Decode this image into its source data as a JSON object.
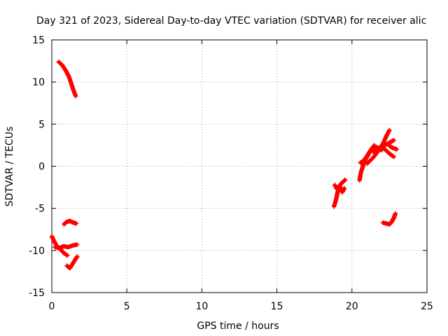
{
  "chart_data": {
    "type": "scatter",
    "title": "Day 321 of 2023, Sidereal Day-to-day VTEC variation (SDTVAR) for receiver alic",
    "xlabel": "GPS time / hours",
    "ylabel": "SDTVAR / TECUs",
    "xlim": [
      0,
      25
    ],
    "ylim": [
      -15,
      15
    ],
    "xticks": [
      0,
      5,
      10,
      15,
      20,
      25
    ],
    "yticks": [
      -15,
      -10,
      -5,
      0,
      5,
      10,
      15
    ],
    "grid": true,
    "marker": "plus",
    "color": "#ff0000",
    "segments": [
      [
        [
          0.45,
          12.4
        ],
        [
          0.7,
          12.0
        ],
        [
          0.95,
          11.3
        ],
        [
          1.15,
          10.6
        ],
        [
          1.3,
          9.8
        ],
        [
          1.45,
          9.0
        ],
        [
          1.6,
          8.3
        ]
      ],
      [
        [
          0.0,
          -8.3
        ],
        [
          0.15,
          -8.9
        ],
        [
          0.35,
          -9.5
        ],
        [
          0.6,
          -9.9
        ],
        [
          0.8,
          -10.3
        ],
        [
          1.05,
          -10.6
        ]
      ],
      [
        [
          0.2,
          -9.6
        ],
        [
          0.5,
          -9.7
        ],
        [
          0.8,
          -9.5
        ],
        [
          1.1,
          -9.6
        ],
        [
          1.4,
          -9.4
        ],
        [
          1.7,
          -9.3
        ]
      ],
      [
        [
          0.8,
          -6.9
        ],
        [
          1.0,
          -6.6
        ],
        [
          1.2,
          -6.5
        ],
        [
          1.45,
          -6.7
        ],
        [
          1.65,
          -6.8
        ]
      ],
      [
        [
          1.0,
          -11.8
        ],
        [
          1.2,
          -12.1
        ],
        [
          1.35,
          -11.7
        ],
        [
          1.55,
          -11.1
        ],
        [
          1.7,
          -10.7
        ]
      ],
      [
        [
          18.8,
          -4.8
        ],
        [
          18.95,
          -3.9
        ],
        [
          19.05,
          -3.0
        ],
        [
          19.15,
          -2.4
        ],
        [
          19.3,
          -2.0
        ],
        [
          19.45,
          -1.8
        ],
        [
          19.55,
          -1.6
        ]
      ],
      [
        [
          18.85,
          -2.2
        ],
        [
          19.0,
          -2.7
        ],
        [
          19.2,
          -2.4
        ],
        [
          19.35,
          -3.1
        ],
        [
          19.5,
          -2.6
        ]
      ],
      [
        [
          20.5,
          -1.7
        ],
        [
          20.6,
          -0.7
        ],
        [
          20.75,
          0.1
        ],
        [
          20.9,
          0.8
        ],
        [
          21.1,
          1.4
        ],
        [
          21.3,
          2.0
        ],
        [
          21.5,
          2.5
        ]
      ],
      [
        [
          20.55,
          0.4
        ],
        [
          20.8,
          0.7
        ],
        [
          21.0,
          1.2
        ],
        [
          21.2,
          1.8
        ],
        [
          21.45,
          2.4
        ],
        [
          21.7,
          2.2
        ],
        [
          22.0,
          1.9
        ]
      ],
      [
        [
          21.0,
          0.3
        ],
        [
          21.4,
          1.0
        ],
        [
          21.8,
          1.9
        ],
        [
          22.1,
          2.8
        ],
        [
          22.3,
          3.6
        ],
        [
          22.5,
          4.3
        ]
      ],
      [
        [
          21.4,
          1.7
        ],
        [
          21.8,
          2.1
        ],
        [
          22.2,
          2.5
        ],
        [
          22.5,
          2.8
        ],
        [
          22.8,
          3.1
        ]
      ],
      [
        [
          21.9,
          2.4
        ],
        [
          22.2,
          2.0
        ],
        [
          22.5,
          1.5
        ],
        [
          22.8,
          1.1
        ]
      ],
      [
        [
          22.5,
          2.4
        ],
        [
          22.7,
          2.2
        ],
        [
          23.0,
          2.0
        ]
      ],
      [
        [
          22.05,
          -6.7
        ],
        [
          22.3,
          -6.8
        ],
        [
          22.5,
          -6.9
        ],
        [
          22.65,
          -6.6
        ],
        [
          22.8,
          -6.1
        ],
        [
          22.9,
          -5.6
        ]
      ]
    ]
  }
}
